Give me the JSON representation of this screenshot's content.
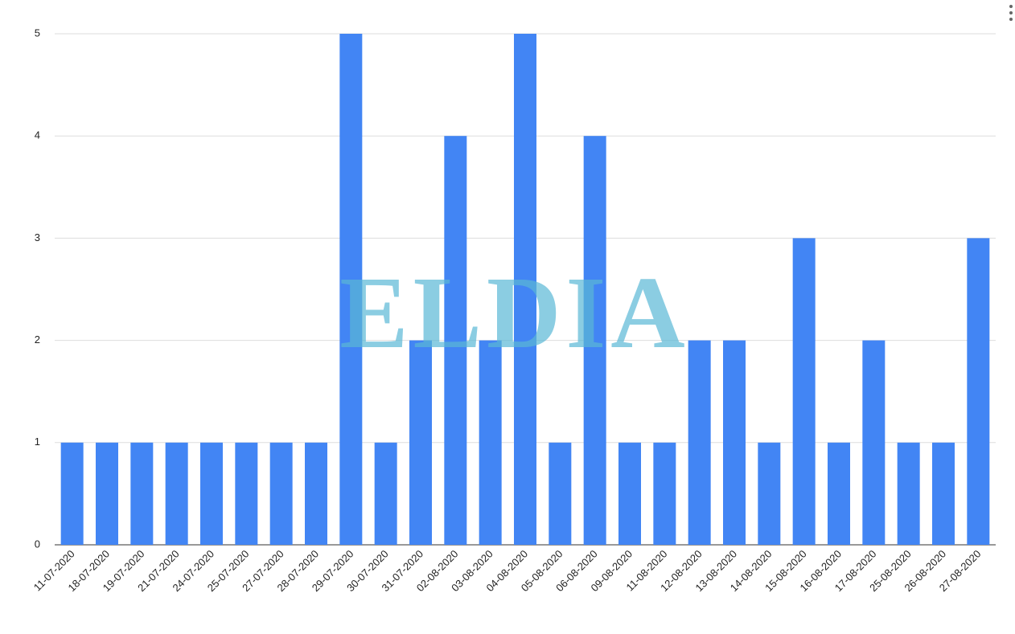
{
  "chart_data": {
    "type": "bar",
    "categories": [
      "11-07-2020",
      "18-07-2020",
      "19-07-2020",
      "21-07-2020",
      "24-07-2020",
      "25-07-2020",
      "27-07-2020",
      "28-07-2020",
      "29-07-2020",
      "30-07-2020",
      "31-07-2020",
      "02-08-2020",
      "03-08-2020",
      "04-08-2020",
      "05-08-2020",
      "06-08-2020",
      "09-08-2020",
      "11-08-2020",
      "12-08-2020",
      "13-08-2020",
      "14-08-2020",
      "15-08-2020",
      "16-08-2020",
      "17-08-2020",
      "25-08-2020",
      "26-08-2020",
      "27-08-2020"
    ],
    "values": [
      1,
      1,
      1,
      1,
      1,
      1,
      1,
      1,
      5,
      1,
      2,
      4,
      2,
      5,
      1,
      4,
      1,
      1,
      2,
      2,
      1,
      3,
      1,
      2,
      1,
      1,
      3
    ],
    "color": "#4285f4",
    "ylim": [
      0,
      5
    ],
    "yticks": [
      0,
      1,
      2,
      3,
      4,
      5
    ],
    "grid": true,
    "watermark": "ELDIA"
  }
}
